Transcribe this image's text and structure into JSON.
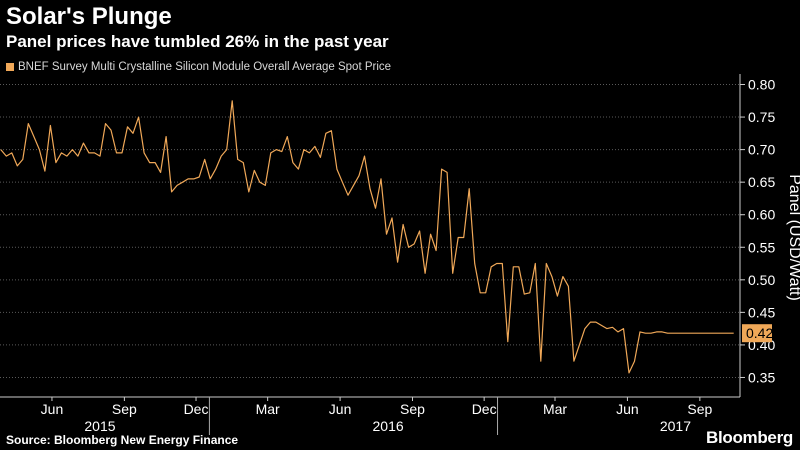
{
  "header": {
    "title": "Solar's Plunge",
    "subtitle": "Panel prices have tumbled 26% in the past year"
  },
  "footer": {
    "source": "Source: Bloomberg New Energy Finance",
    "brand": "Bloomberg"
  },
  "colors": {
    "line": "#f0a858",
    "background": "#000000",
    "grid": "#5a5a5a",
    "text": "#ffffff"
  },
  "chart_data": {
    "type": "line",
    "title": "Solar's Plunge",
    "subtitle": "Panel prices have tumbled 26% in the past year",
    "ylabel": "Panel (USD/Watt)",
    "ylim": [
      0.32,
      0.81
    ],
    "yticks": [
      "0.80",
      "0.75",
      "0.70",
      "0.65",
      "0.60",
      "0.55",
      "0.50",
      "0.45",
      "0.40",
      "0.35"
    ],
    "ytick_values": [
      0.8,
      0.75,
      0.7,
      0.65,
      0.6,
      0.55,
      0.5,
      0.45,
      0.4,
      0.35
    ],
    "xlim": [
      "2015-04-10",
      "2017-11-05"
    ],
    "xticks": [
      {
        "label": "Jun",
        "date": "2015-06-15"
      },
      {
        "label": "Sep",
        "date": "2015-09-15"
      },
      {
        "label": "Dec",
        "date": "2015-12-15"
      },
      {
        "label": "Mar",
        "date": "2016-03-15"
      },
      {
        "label": "Jun",
        "date": "2016-06-15"
      },
      {
        "label": "Sep",
        "date": "2016-09-15"
      },
      {
        "label": "Dec",
        "date": "2016-12-15"
      },
      {
        "label": "Mar",
        "date": "2017-03-15"
      },
      {
        "label": "Jun",
        "date": "2017-06-15"
      },
      {
        "label": "Sep",
        "date": "2017-09-15"
      }
    ],
    "years": [
      {
        "label": "2015",
        "date": "2015-08-15"
      },
      {
        "label": "2016",
        "date": "2016-08-15"
      },
      {
        "label": "2017",
        "date": "2017-08-15"
      }
    ],
    "grid": true,
    "legend": "top-left",
    "last_value_label": "0.42",
    "series": [
      {
        "name": "BNEF Survey Multi Crystalline Silicon Module Overall Average Spot Price",
        "color": "#f0a858",
        "x": [
          "2015-04-11",
          "2015-04-18",
          "2015-04-25",
          "2015-05-02",
          "2015-05-09",
          "2015-05-16",
          "2015-05-23",
          "2015-05-30",
          "2015-06-06",
          "2015-06-13",
          "2015-06-20",
          "2015-06-27",
          "2015-07-04",
          "2015-07-11",
          "2015-07-18",
          "2015-07-25",
          "2015-08-01",
          "2015-08-08",
          "2015-08-15",
          "2015-08-22",
          "2015-08-29",
          "2015-09-05",
          "2015-09-12",
          "2015-09-19",
          "2015-09-26",
          "2015-10-03",
          "2015-10-10",
          "2015-10-17",
          "2015-10-24",
          "2015-10-31",
          "2015-11-07",
          "2015-11-14",
          "2015-11-21",
          "2015-11-28",
          "2015-12-05",
          "2015-12-12",
          "2015-12-19",
          "2015-12-26",
          "2016-01-02",
          "2016-01-09",
          "2016-01-16",
          "2016-01-23",
          "2016-01-30",
          "2016-02-06",
          "2016-02-13",
          "2016-02-20",
          "2016-02-27",
          "2016-03-05",
          "2016-03-12",
          "2016-03-19",
          "2016-03-26",
          "2016-04-02",
          "2016-04-09",
          "2016-04-16",
          "2016-04-23",
          "2016-04-30",
          "2016-05-07",
          "2016-05-14",
          "2016-05-21",
          "2016-05-28",
          "2016-06-04",
          "2016-06-11",
          "2016-06-18",
          "2016-06-25",
          "2016-07-02",
          "2016-07-09",
          "2016-07-16",
          "2016-07-23",
          "2016-07-30",
          "2016-08-06",
          "2016-08-13",
          "2016-08-20",
          "2016-08-27",
          "2016-09-03",
          "2016-09-10",
          "2016-09-17",
          "2016-09-24",
          "2016-10-01",
          "2016-10-08",
          "2016-10-15",
          "2016-10-22",
          "2016-10-29",
          "2016-11-05",
          "2016-11-12",
          "2016-11-19",
          "2016-11-26",
          "2016-12-03",
          "2016-12-10",
          "2016-12-17",
          "2016-12-24",
          "2016-12-31",
          "2017-01-07",
          "2017-01-14",
          "2017-01-21",
          "2017-01-28",
          "2017-02-04",
          "2017-02-11",
          "2017-02-18",
          "2017-02-25",
          "2017-03-04",
          "2017-03-11",
          "2017-03-18",
          "2017-03-25",
          "2017-04-01",
          "2017-04-08",
          "2017-04-15",
          "2017-04-22",
          "2017-04-29",
          "2017-05-06",
          "2017-05-13",
          "2017-05-20",
          "2017-05-27",
          "2017-06-03",
          "2017-06-10",
          "2017-06-17",
          "2017-06-24",
          "2017-07-01",
          "2017-07-08",
          "2017-07-15",
          "2017-07-22",
          "2017-07-29",
          "2017-08-05",
          "2017-08-12",
          "2017-08-19",
          "2017-08-26",
          "2017-09-02",
          "2017-09-09",
          "2017-09-16",
          "2017-09-23",
          "2017-09-30",
          "2017-10-07",
          "2017-10-14",
          "2017-10-21",
          "2017-10-28"
        ],
        "values": [
          0.7,
          0.69,
          0.695,
          0.675,
          0.685,
          0.74,
          0.72,
          0.7,
          0.667,
          0.737,
          0.68,
          0.695,
          0.69,
          0.7,
          0.69,
          0.71,
          0.695,
          0.695,
          0.69,
          0.74,
          0.73,
          0.695,
          0.695,
          0.735,
          0.725,
          0.75,
          0.695,
          0.68,
          0.68,
          0.665,
          0.72,
          0.635,
          0.645,
          0.65,
          0.655,
          0.655,
          0.658,
          0.685,
          0.655,
          0.67,
          0.69,
          0.7,
          0.775,
          0.685,
          0.68,
          0.635,
          0.668,
          0.65,
          0.645,
          0.695,
          0.7,
          0.697,
          0.72,
          0.68,
          0.67,
          0.7,
          0.695,
          0.705,
          0.688,
          0.725,
          0.729,
          0.67,
          0.65,
          0.63,
          0.645,
          0.66,
          0.69,
          0.64,
          0.61,
          0.655,
          0.57,
          0.595,
          0.527,
          0.585,
          0.55,
          0.555,
          0.575,
          0.51,
          0.57,
          0.545,
          0.67,
          0.665,
          0.51,
          0.565,
          0.565,
          0.64,
          0.525,
          0.48,
          0.48,
          0.52,
          0.525,
          0.525,
          0.405,
          0.52,
          0.52,
          0.478,
          0.48,
          0.525,
          0.375,
          0.525,
          0.505,
          0.475,
          0.505,
          0.49,
          0.375,
          0.4,
          0.425,
          0.435,
          0.435,
          0.43,
          0.425,
          0.427,
          0.42,
          0.425,
          0.357,
          0.375,
          0.42,
          0.418,
          0.418,
          0.42,
          0.42,
          0.418,
          0.418,
          0.418,
          0.418,
          0.418,
          0.418,
          0.418,
          0.418,
          0.418,
          0.418,
          0.418,
          0.418,
          0.418
        ]
      }
    ]
  }
}
